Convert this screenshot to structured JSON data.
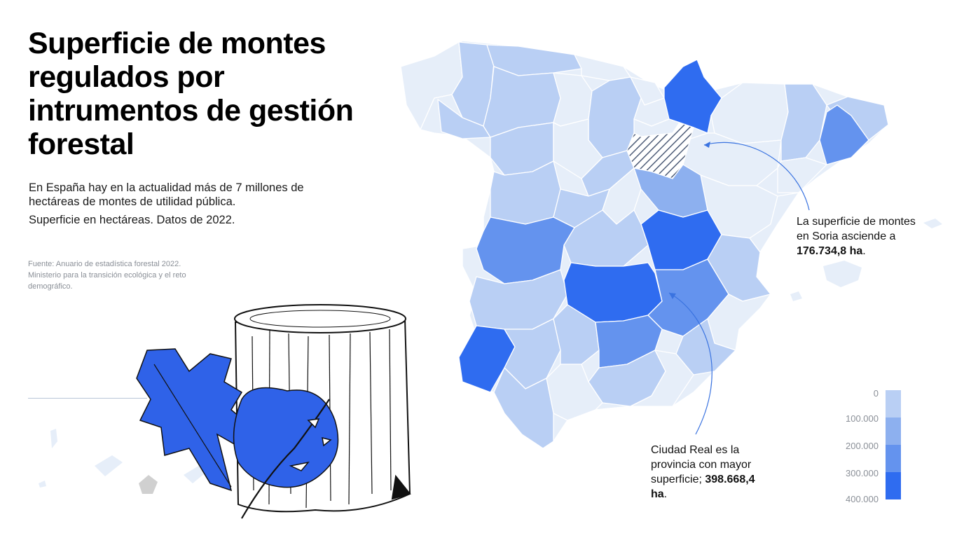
{
  "title": "Superficie de montes regulados por intrumentos de gestión forestal",
  "subtitle": "En España hay en la actualidad más de 7 millones de hectáreas de montes de utilidad pública.",
  "note": "Superficie en hectáreas. Datos de 2022.",
  "source": "Fuente: Anuario de estadística forestal 2022. Ministerio para la transición ecológica y el reto demográfico.",
  "annotations": {
    "soria": {
      "text": "La superficie de montes en Soria asciende a",
      "value": "176.734,8 ha",
      "suffix": "."
    },
    "ciudad_real": {
      "text": "Ciudad Real es la provincia con mayor superficie;",
      "value": "398.668,4 ha",
      "suffix": "."
    }
  },
  "legend": {
    "labels": [
      "0",
      "100.000",
      "200.000",
      "300.000",
      "400.000"
    ],
    "colors": [
      "#e6eef9",
      "#b9cff4",
      "#8db0ef",
      "#6493ee",
      "#2f6cf0"
    ]
  },
  "colors": {
    "shade0": "#e6eef9",
    "shade1": "#b9cff4",
    "shade2": "#8db0ef",
    "shade3": "#6493ee",
    "shade4": "#2f6cf0",
    "hatch": "#4e5d78",
    "leaf": "#2f62e8",
    "canarias_grey": "#d0d0d0"
  }
}
